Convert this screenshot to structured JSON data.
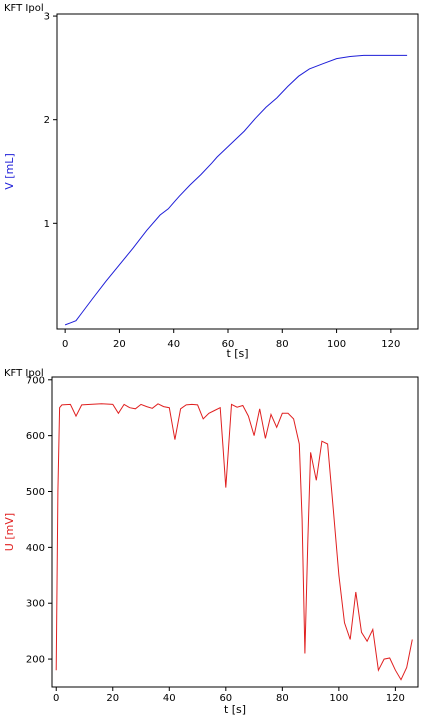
{
  "chart_data": [
    {
      "type": "line",
      "title": "KFT Ipol",
      "xlabel": "t [s]",
      "ylabel": "V [mL]",
      "xlim": [
        -3,
        130
      ],
      "ylim": [
        -0.02,
        3.02
      ],
      "xticks": [
        0,
        20,
        40,
        60,
        80,
        100,
        120
      ],
      "yticks": [
        1,
        2,
        3
      ],
      "grid": false,
      "color": "#1f1fd8",
      "series": [
        {
          "x": [
            0,
            2,
            4,
            6,
            10,
            15,
            20,
            25,
            30,
            35,
            38,
            40,
            42,
            46,
            50,
            54,
            56,
            60,
            62,
            66,
            70,
            74,
            78,
            82,
            86,
            90,
            95,
            100,
            105,
            110,
            115,
            120,
            126
          ],
          "y": [
            0.02,
            0.04,
            0.06,
            0.13,
            0.27,
            0.44,
            0.6,
            0.76,
            0.93,
            1.08,
            1.14,
            1.2,
            1.26,
            1.37,
            1.47,
            1.58,
            1.64,
            1.74,
            1.79,
            1.89,
            2.01,
            2.12,
            2.21,
            2.32,
            2.42,
            2.49,
            2.54,
            2.59,
            2.61,
            2.62,
            2.62,
            2.62,
            2.62
          ]
        }
      ]
    },
    {
      "type": "line",
      "title": "KFT Ipol",
      "xlabel": "t [s]",
      "ylabel": "U [mV]",
      "xlim": [
        -1.5,
        128
      ],
      "ylim": [
        150,
        705
      ],
      "xticks": [
        0,
        20,
        40,
        60,
        80,
        100,
        120
      ],
      "yticks": [
        200,
        300,
        400,
        500,
        600,
        700
      ],
      "grid": false,
      "color": "#e02020",
      "series": [
        {
          "x": [
            0,
            0.6,
            1.2,
            2,
            5,
            7,
            9,
            12,
            16,
            20,
            22,
            24,
            26,
            28,
            30,
            32,
            34,
            36,
            38,
            40,
            42,
            44,
            46,
            48,
            50,
            52,
            54,
            56,
            58,
            59,
            60,
            62,
            64,
            66,
            68,
            70,
            72,
            74,
            76,
            78,
            80,
            82,
            84,
            86,
            87,
            88,
            89,
            90,
            92,
            94,
            96,
            98,
            100,
            102,
            104,
            106,
            108,
            110,
            112,
            114,
            116,
            118,
            120,
            122,
            124,
            126
          ],
          "y": [
            180,
            500,
            650,
            655,
            656,
            635,
            655,
            656,
            657,
            656,
            640,
            656,
            650,
            648,
            656,
            652,
            649,
            657,
            652,
            650,
            593,
            648,
            655,
            656,
            655,
            630,
            640,
            645,
            650,
            580,
            507,
            656,
            651,
            654,
            635,
            600,
            648,
            595,
            638,
            615,
            640,
            640,
            630,
            585,
            450,
            210,
            410,
            570,
            520,
            590,
            585,
            470,
            350,
            265,
            235,
            320,
            248,
            232,
            253,
            180,
            200,
            202,
            180,
            163,
            185,
            235
          ]
        }
      ]
    }
  ]
}
